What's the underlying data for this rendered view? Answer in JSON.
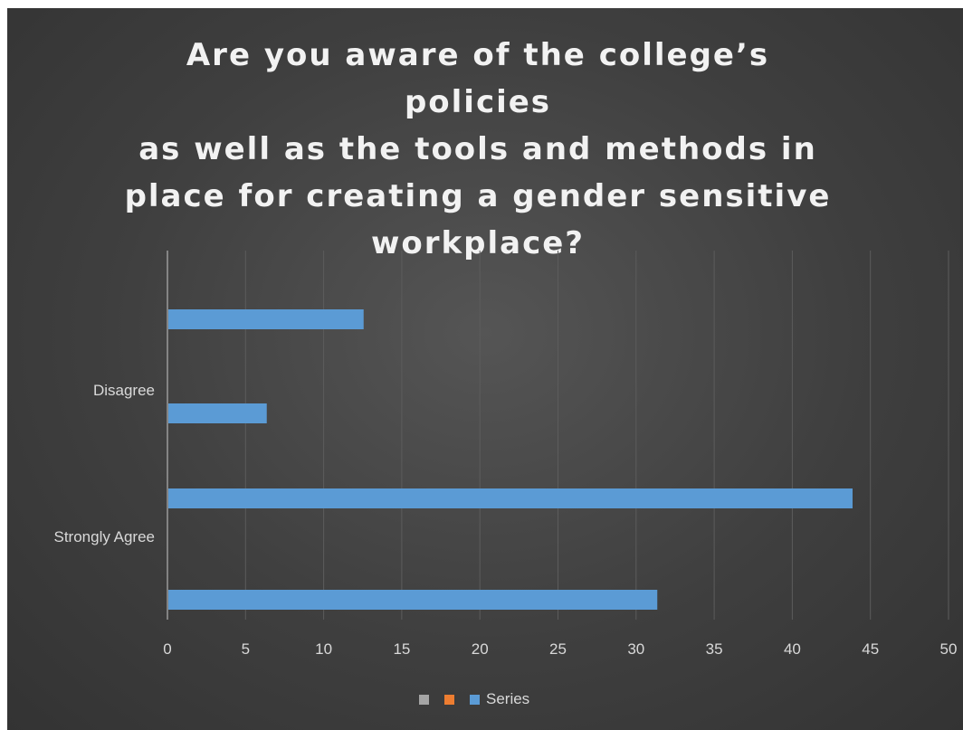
{
  "chart_data": {
    "type": "bar",
    "orientation": "horizontal",
    "title": "Are you aware of the college’s policies\nas well as the tools and methods in\nplace for creating a gender sensitive\nworkplace?",
    "category_labels": [
      "Strongly Agree",
      "Disagree"
    ],
    "bars_bottom_to_top": [
      31.3,
      43.8,
      6.3,
      12.5
    ],
    "x_ticks": [
      "0",
      "5",
      "10",
      "15",
      "20",
      "25",
      "30",
      "35",
      "40",
      "45",
      "50"
    ],
    "xlim": [
      0,
      50
    ],
    "grid": true,
    "legend": {
      "placement": "bottom",
      "entries": [
        {
          "name": "",
          "color": "#a5a5a5"
        },
        {
          "name": "",
          "color": "#ed7d31"
        },
        {
          "name": "Series",
          "color": "#5b9bd5"
        }
      ]
    },
    "bar_color": "#5b9bd5",
    "background_color": "#404040"
  }
}
